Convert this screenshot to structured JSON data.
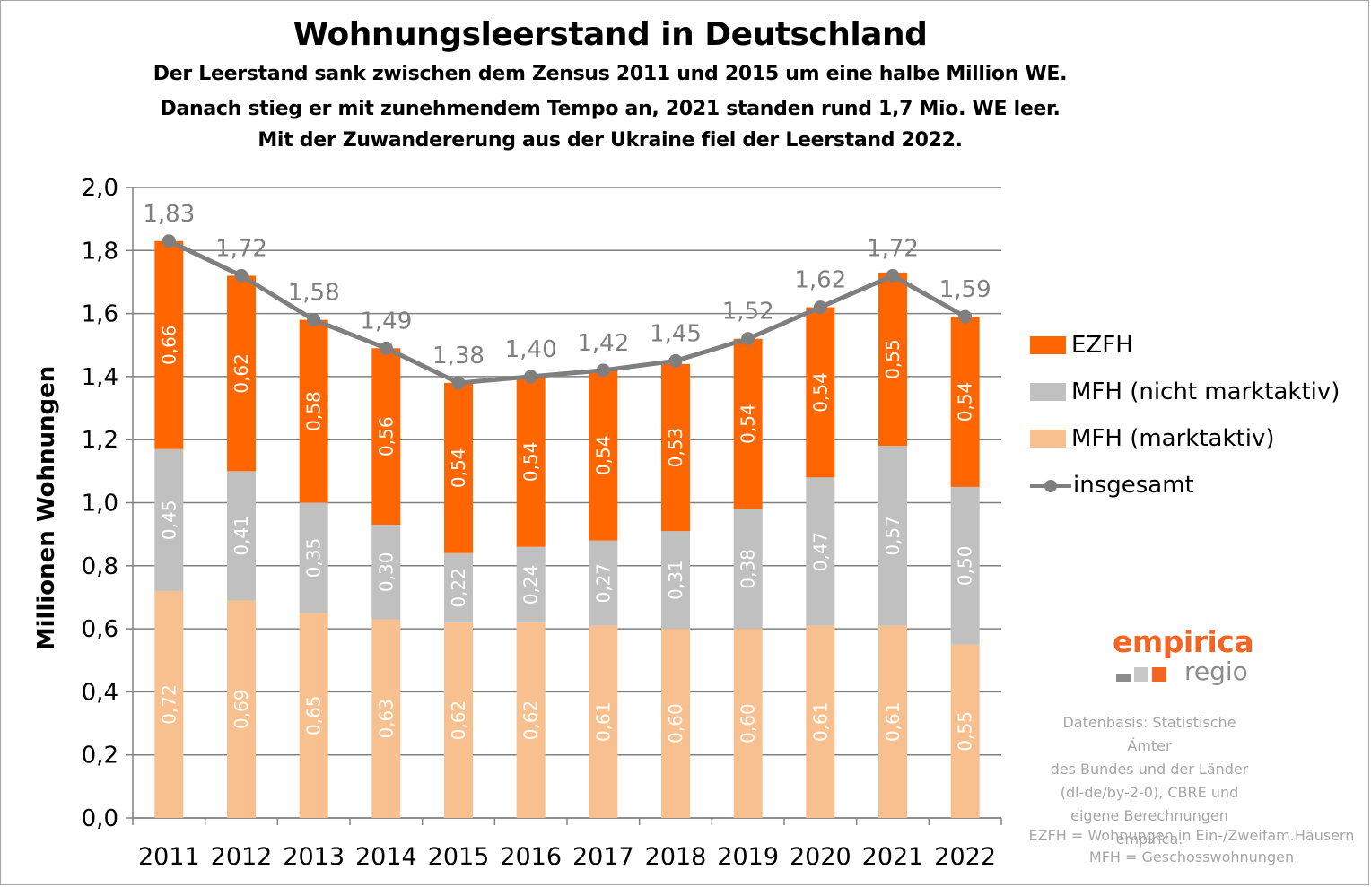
{
  "title": "Wohnungsleerstand in Deutschland",
  "subtitle": [
    "Der Leerstand sank zwischen dem Zensus 2011 und 2015 um eine halbe Million WE.",
    "Danach stieg er mit zunehmendem Tempo an, 2021 standen rund 1,7 Mio. WE leer.",
    "Mit der Zuwandererung aus der Ukraine fiel der Leerstand 2022."
  ],
  "legend": {
    "ezfh": "EZFH",
    "mfh_nicht": "MFH (nicht marktaktiv)",
    "mfh_markt": "MFH (marktaktiv)",
    "total": "insgesamt"
  },
  "colors": {
    "ezfh": "#ff6600",
    "mfh_nicht": "#c0c0c0",
    "mfh_markt": "#f8c08f",
    "total": "#7f7f7f"
  },
  "logo": {
    "word": "empirica",
    "sub": "regio",
    "icon": "empirica-logo-squares"
  },
  "source": [
    "Datenbasis: Statistische Ämter",
    "des Bundes und der Länder",
    "(dl-de/by-2-0), CBRE und",
    "eigene Berechnungen empirica."
  ],
  "notes": [
    "EZFH = Wohnungen in Ein-/Zweifam.Häusern",
    "MFH = Geschosswohnungen"
  ],
  "chart_data": {
    "type": "bar",
    "stacked": true,
    "categories": [
      "2011",
      "2012",
      "2013",
      "2014",
      "2015",
      "2016",
      "2017",
      "2018",
      "2019",
      "2020",
      "2021",
      "2022"
    ],
    "series": [
      {
        "name": "MFH (marktaktiv)",
        "values": [
          0.72,
          0.69,
          0.65,
          0.63,
          0.62,
          0.62,
          0.61,
          0.6,
          0.6,
          0.61,
          0.61,
          0.55
        ],
        "labels": [
          "0,72",
          "0,69",
          "0,65",
          "0,63",
          "0,62",
          "0,62",
          "0,61",
          "0,60",
          "0,60",
          "0,61",
          "0,61",
          "0,55"
        ]
      },
      {
        "name": "MFH (nicht marktaktiv)",
        "values": [
          0.45,
          0.41,
          0.35,
          0.3,
          0.22,
          0.24,
          0.27,
          0.31,
          0.38,
          0.47,
          0.57,
          0.5
        ],
        "labels": [
          "0,45",
          "0,41",
          "0,35",
          "0,30",
          "0,22",
          "0,24",
          "0,27",
          "0,31",
          "0,38",
          "0,47",
          "0,57",
          "0,50"
        ]
      },
      {
        "name": "EZFH",
        "values": [
          0.66,
          0.62,
          0.58,
          0.56,
          0.54,
          0.54,
          0.54,
          0.53,
          0.54,
          0.54,
          0.55,
          0.54
        ],
        "labels": [
          "0,66",
          "0,62",
          "0,58",
          "0,56",
          "0,54",
          "0,54",
          "0,54",
          "0,53",
          "0,54",
          "0,54",
          "0,55",
          "0,54"
        ]
      }
    ],
    "line": {
      "name": "insgesamt",
      "values": [
        1.83,
        1.72,
        1.58,
        1.49,
        1.38,
        1.4,
        1.42,
        1.45,
        1.52,
        1.62,
        1.72,
        1.59
      ],
      "labels": [
        "1,83",
        "1,72",
        "1,58",
        "1,49",
        "1,38",
        "1,40",
        "1,42",
        "1,45",
        "1,52",
        "1,62",
        "1,72",
        "1,59"
      ]
    },
    "ylabel": "Millionen Wohnungen",
    "ylim": [
      0,
      2.0
    ],
    "yticks": [
      "0,0",
      "0,2",
      "0,4",
      "0,6",
      "0,8",
      "1,0",
      "1,2",
      "1,4",
      "1,6",
      "1,8",
      "2,0"
    ],
    "grid": true,
    "legend_position": "right"
  }
}
